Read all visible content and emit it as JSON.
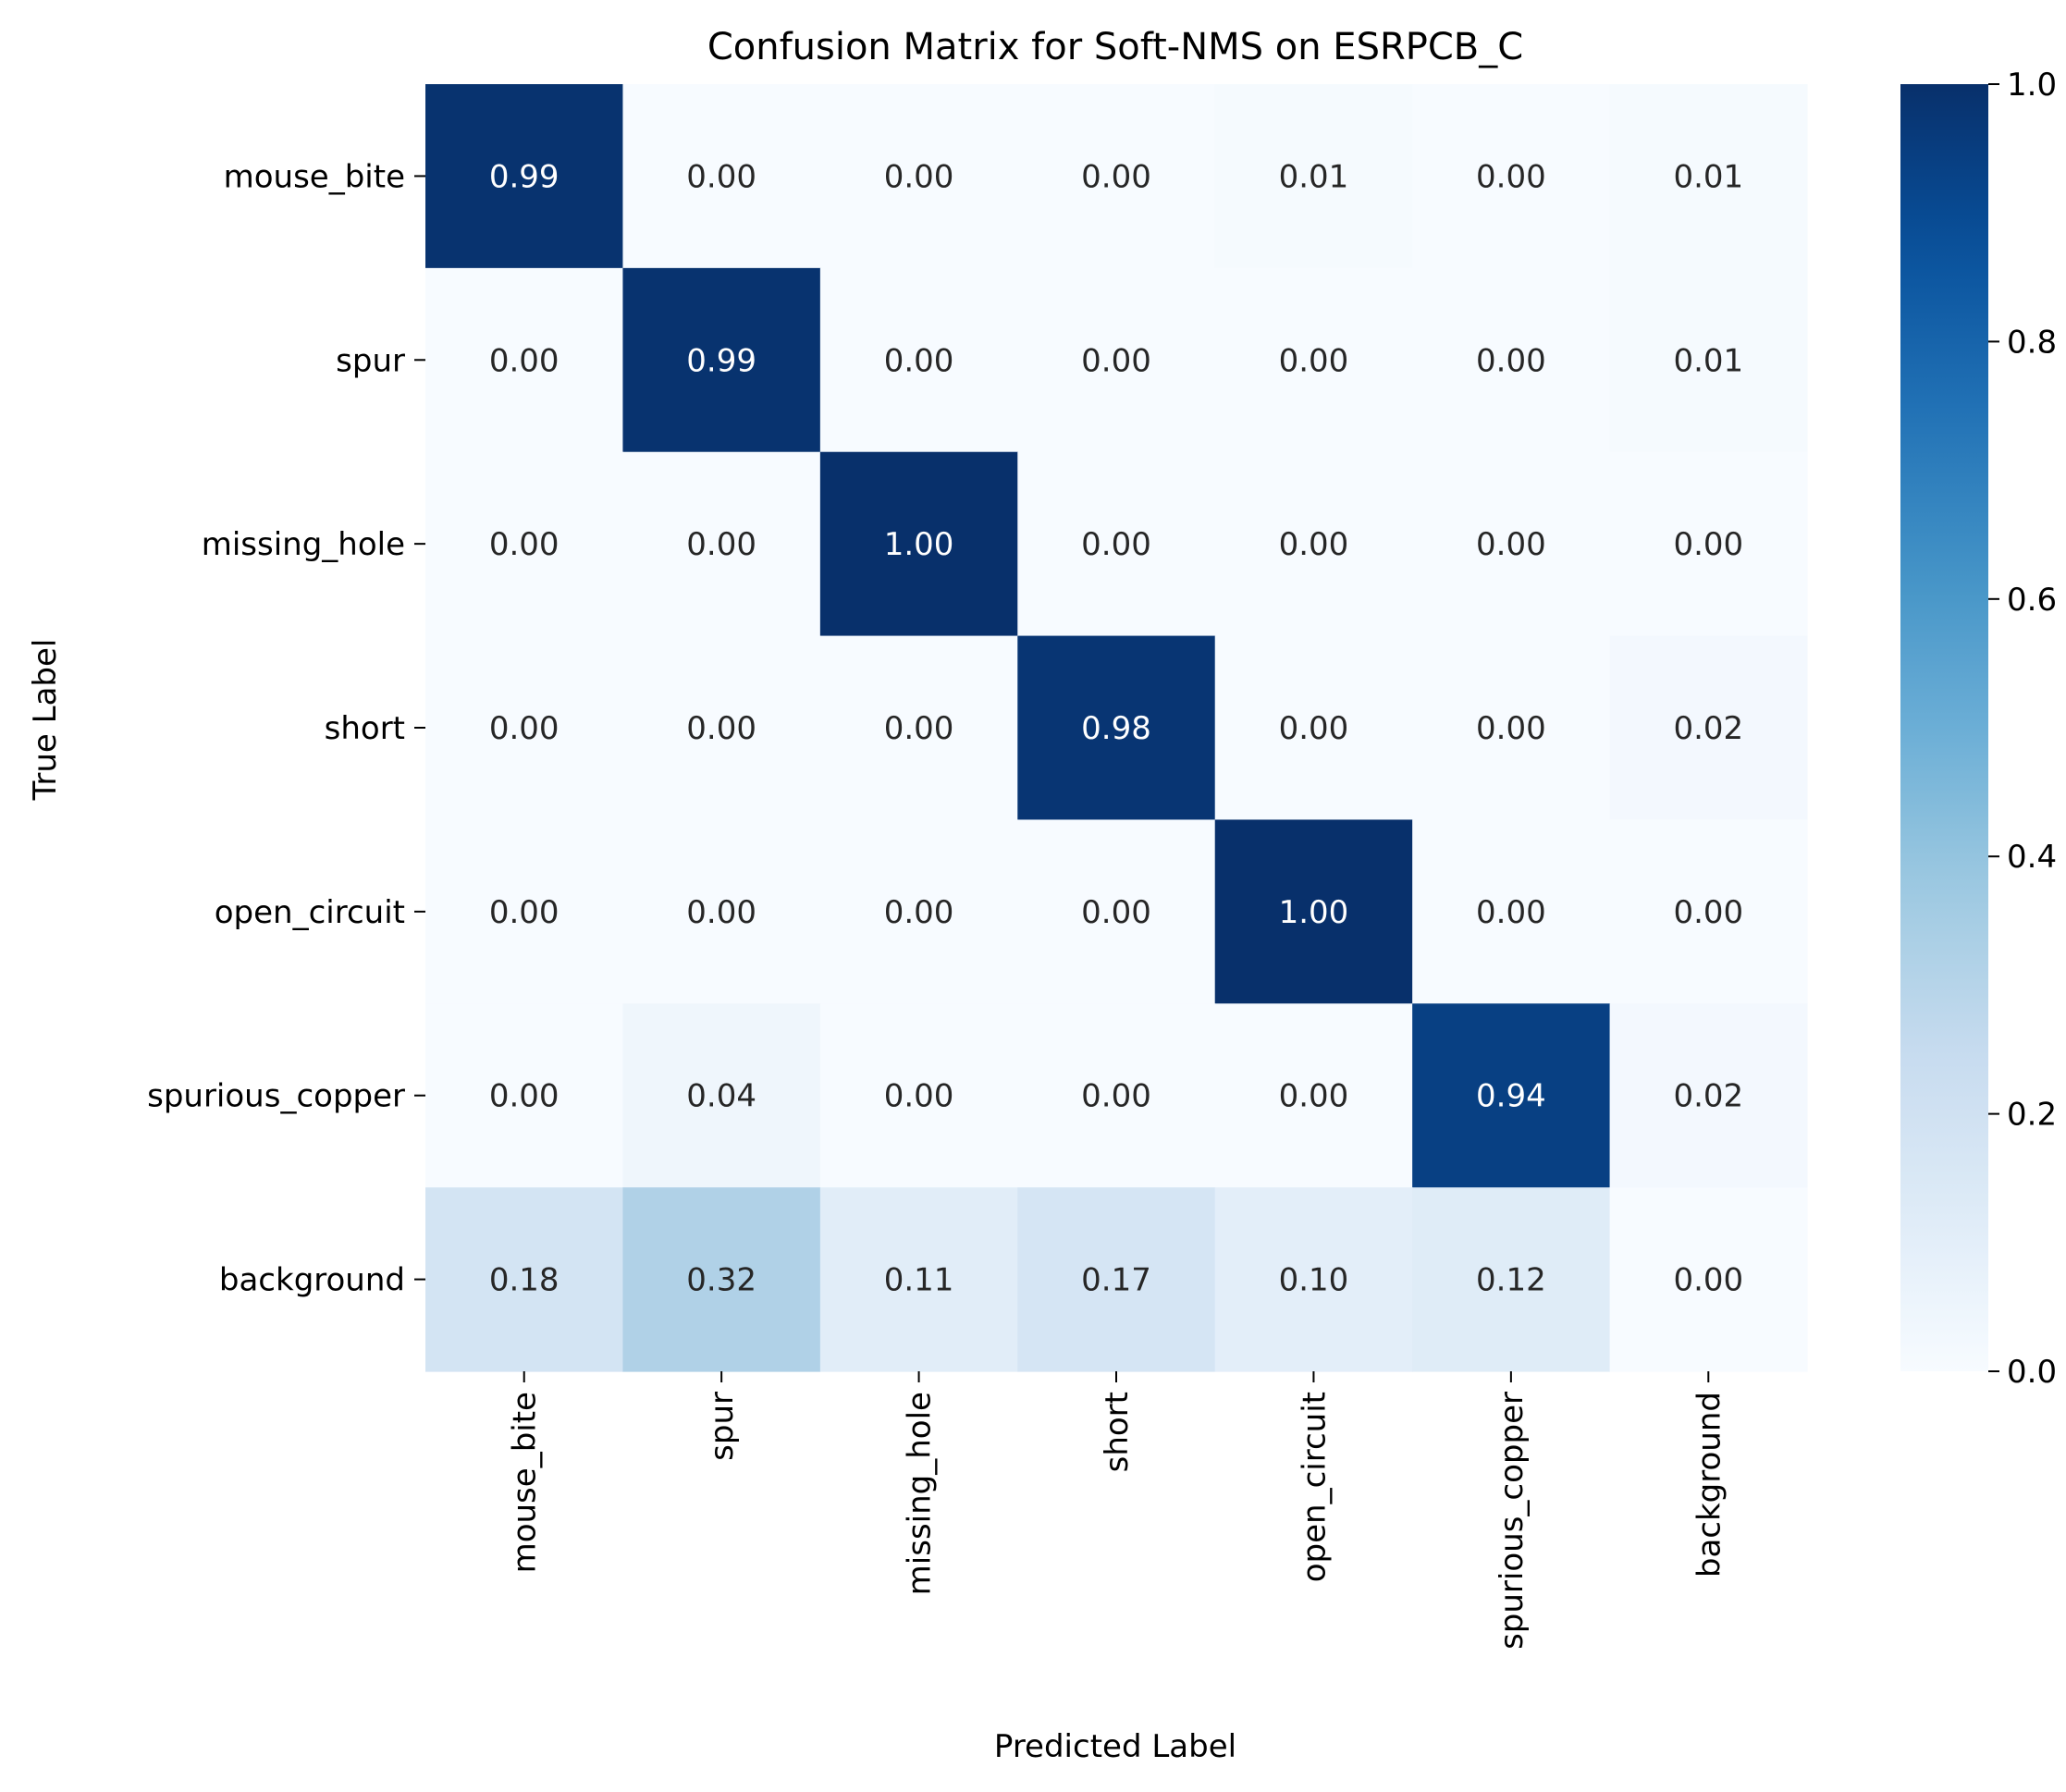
{
  "chart_data": {
    "type": "heatmap",
    "title": "Confusion Matrix for Soft-NMS on ESRPCB_C",
    "xlabel": "Predicted Label",
    "ylabel": "True Label",
    "x_categories": [
      "mouse_bite",
      "spur",
      "missing_hole",
      "short",
      "open_circuit",
      "spurious_copper",
      "background"
    ],
    "y_categories": [
      "mouse_bite",
      "spur",
      "missing_hole",
      "short",
      "open_circuit",
      "spurious_copper",
      "background"
    ],
    "values": [
      [
        0.99,
        0.0,
        0.0,
        0.0,
        0.01,
        0.0,
        0.01
      ],
      [
        0.0,
        0.99,
        0.0,
        0.0,
        0.0,
        0.0,
        0.01
      ],
      [
        0.0,
        0.0,
        1.0,
        0.0,
        0.0,
        0.0,
        0.0
      ],
      [
        0.0,
        0.0,
        0.0,
        0.98,
        0.0,
        0.0,
        0.02
      ],
      [
        0.0,
        0.0,
        0.0,
        0.0,
        1.0,
        0.0,
        0.0
      ],
      [
        0.0,
        0.04,
        0.0,
        0.0,
        0.0,
        0.94,
        0.02
      ],
      [
        0.18,
        0.32,
        0.11,
        0.17,
        0.1,
        0.12,
        0.0
      ]
    ],
    "value_format": "0.00",
    "colormap": "Blues",
    "vmin": 0.0,
    "vmax": 1.0,
    "colorbar_ticks": [
      "0.0",
      "0.2",
      "0.4",
      "0.6",
      "0.8",
      "1.0"
    ],
    "colors": {
      "cmap_stops": [
        "#f7fbff",
        "#deebf7",
        "#c6dbef",
        "#9ecae1",
        "#6baed6",
        "#4292c6",
        "#2171b5",
        "#08519c",
        "#08306b"
      ],
      "text_dark": "#262626",
      "text_light": "#ffffff"
    }
  }
}
